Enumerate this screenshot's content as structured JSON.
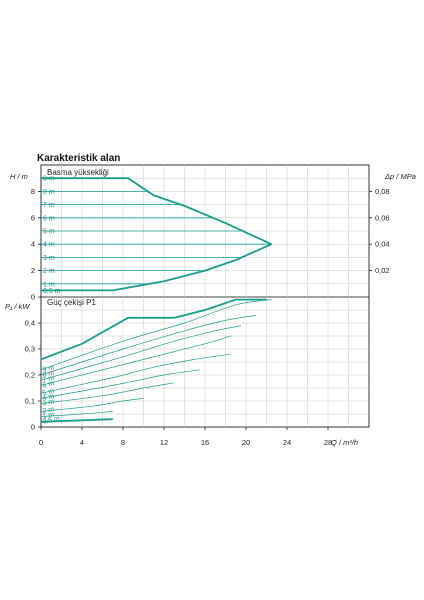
{
  "title": "Karakteristik alan",
  "accent_color": "#1a9e8c",
  "chart_data": [
    {
      "type": "line",
      "subtitle": "Basma yüksekliği",
      "ylabel": "H / m",
      "y2label": "Δp / MPa",
      "xlim": [
        0,
        32
      ],
      "ylim": [
        0,
        10
      ],
      "y2lim": [
        0,
        0.1
      ],
      "yticks": [
        "0",
        "2",
        "4",
        "6",
        "8"
      ],
      "y2ticks": [
        "0,02",
        "0,04",
        "0,06",
        "0,08"
      ],
      "grid": true,
      "curve_labels": [
        "9 m",
        "8 m",
        "7 m",
        "6 m",
        "5 m",
        "4 m",
        "3 m",
        "2 m",
        "1 m",
        "0,5 m"
      ],
      "speed_lines_h": [
        9,
        8,
        7,
        6,
        5,
        4,
        3,
        2,
        1,
        0.5
      ],
      "envelope_max": [
        [
          0,
          9
        ],
        [
          8.5,
          9
        ],
        [
          11,
          7.7
        ],
        [
          14,
          6.9
        ],
        [
          18,
          5.6
        ],
        [
          22.5,
          4
        ]
      ],
      "envelope_min": [
        [
          0,
          0.5
        ],
        [
          7,
          0.5
        ],
        [
          12,
          1.2
        ],
        [
          16,
          2
        ],
        [
          19,
          2.8
        ],
        [
          22.5,
          4
        ]
      ]
    },
    {
      "type": "line",
      "subtitle": "Güç çekişi P1",
      "ylabel": "P₁ / kW",
      "xlabel": "Q / m³/h",
      "xlim": [
        0,
        32
      ],
      "ylim": [
        0,
        0.5
      ],
      "xticks": [
        "0",
        "4",
        "8",
        "12",
        "16",
        "20",
        "24",
        "28"
      ],
      "yticks": [
        "0",
        "0,1",
        "0,2",
        "0,3",
        "0,4"
      ],
      "grid": true,
      "curve_labels": [
        "9 m",
        "8 m",
        "7 m",
        "6 m",
        "5 m",
        "4 m",
        "3 m",
        "2 m",
        "1 m",
        "0,5 m"
      ],
      "envelope_max": [
        [
          0,
          0.26
        ],
        [
          4,
          0.32
        ],
        [
          8.5,
          0.42
        ],
        [
          13,
          0.42
        ],
        [
          16,
          0.45
        ],
        [
          19,
          0.49
        ],
        [
          22,
          0.49
        ]
      ],
      "envelope_min": [
        [
          0,
          0.02
        ],
        [
          7,
          0.03
        ]
      ],
      "speed_curves": [
        [
          [
            0,
            0.22
          ],
          [
            8,
            0.33
          ],
          [
            14,
            0.4
          ],
          [
            19,
            0.47
          ],
          [
            22.5,
            0.49
          ]
        ],
        [
          [
            0,
            0.2
          ],
          [
            8,
            0.3
          ],
          [
            14,
            0.37
          ],
          [
            18,
            0.41
          ],
          [
            21,
            0.43
          ]
        ],
        [
          [
            0,
            0.18
          ],
          [
            8,
            0.27
          ],
          [
            13,
            0.33
          ],
          [
            17,
            0.37
          ],
          [
            19.5,
            0.39
          ]
        ],
        [
          [
            0,
            0.16
          ],
          [
            8,
            0.24
          ],
          [
            13,
            0.29
          ],
          [
            16,
            0.32
          ],
          [
            18.5,
            0.35
          ]
        ],
        [
          [
            0,
            0.13
          ],
          [
            7,
            0.19
          ],
          [
            11,
            0.23
          ],
          [
            15,
            0.26
          ],
          [
            18.5,
            0.28
          ]
        ],
        [
          [
            0,
            0.11
          ],
          [
            7,
            0.16
          ],
          [
            12,
            0.2
          ],
          [
            15.5,
            0.22
          ]
        ],
        [
          [
            0,
            0.09
          ],
          [
            6,
            0.12
          ],
          [
            10,
            0.15
          ],
          [
            13,
            0.17
          ]
        ],
        [
          [
            0,
            0.06
          ],
          [
            5,
            0.08
          ],
          [
            8,
            0.1
          ],
          [
            10,
            0.11
          ]
        ],
        [
          [
            0,
            0.04
          ],
          [
            4,
            0.05
          ],
          [
            7,
            0.06
          ]
        ],
        [
          [
            0,
            0.02
          ],
          [
            3,
            0.025
          ],
          [
            7,
            0.03
          ]
        ]
      ]
    }
  ]
}
